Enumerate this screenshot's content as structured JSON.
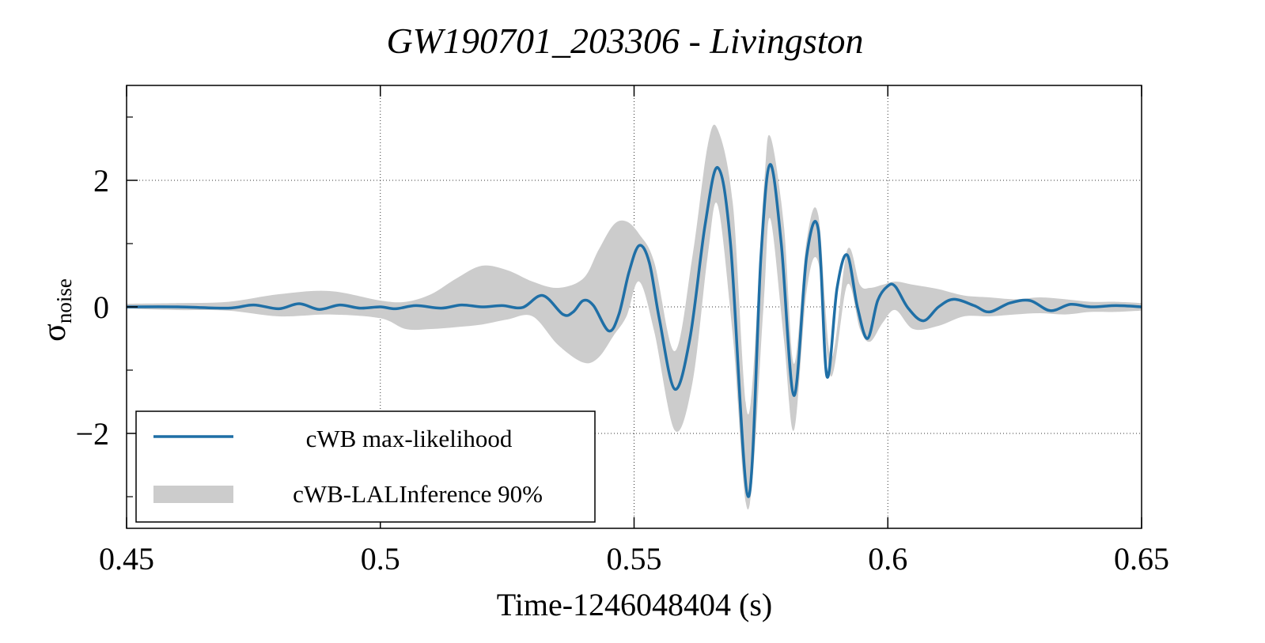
{
  "chart_data": {
    "type": "line",
    "title": "GW190701_203306 - Livingston",
    "xlabel": "Time-1246048404 (s)",
    "ylabel": "σ",
    "ylabel_subscript": "noise",
    "xlim": [
      0.45,
      0.65
    ],
    "ylim": [
      -3.5,
      3.5
    ],
    "x_ticks": [
      0.45,
      0.5,
      0.55,
      0.6,
      0.65
    ],
    "x_tick_labels": [
      "0.45",
      "0.5",
      "0.55",
      "0.6",
      "0.65"
    ],
    "y_ticks": [
      2,
      0,
      -2
    ],
    "y_tick_labels": [
      "2",
      "0",
      "−2"
    ],
    "y_minor_ticks": [
      3,
      1,
      -1,
      -3
    ],
    "grid": true,
    "legend_position": "bottom-left",
    "colors": {
      "line": "#1f6fa6",
      "band": "#cccccc"
    },
    "series": [
      {
        "name": "cWB max-likelihood",
        "kind": "line",
        "x": [
          0.45,
          0.46,
          0.47,
          0.475,
          0.48,
          0.484,
          0.488,
          0.492,
          0.496,
          0.5,
          0.503,
          0.507,
          0.512,
          0.516,
          0.52,
          0.524,
          0.528,
          0.532,
          0.536,
          0.538,
          0.54,
          0.542,
          0.545,
          0.547,
          0.549,
          0.551,
          0.553,
          0.555,
          0.558,
          0.561,
          0.564,
          0.5665,
          0.569,
          0.5725,
          0.575,
          0.5768,
          0.579,
          0.5815,
          0.584,
          0.5863,
          0.588,
          0.59,
          0.592,
          0.594,
          0.596,
          0.598,
          0.6,
          0.6015,
          0.604,
          0.607,
          0.61,
          0.613,
          0.617,
          0.62,
          0.624,
          0.628,
          0.632,
          0.636,
          0.64,
          0.645,
          0.65
        ],
        "y": [
          0.0,
          0.0,
          -0.02,
          0.03,
          -0.03,
          0.05,
          -0.04,
          0.03,
          -0.02,
          0.0,
          -0.03,
          0.02,
          -0.02,
          0.03,
          0.0,
          0.02,
          -0.01,
          0.18,
          -0.12,
          -0.08,
          0.1,
          0.02,
          -0.38,
          -0.12,
          0.55,
          0.97,
          0.7,
          -0.2,
          -1.3,
          -0.5,
          1.3,
          2.2,
          1.0,
          -3.0,
          0.8,
          2.25,
          1.0,
          -1.4,
          0.8,
          1.22,
          -1.1,
          0.3,
          0.82,
          0.0,
          -0.5,
          0.1,
          0.33,
          0.32,
          -0.02,
          -0.22,
          0.0,
          0.12,
          0.02,
          -0.08,
          0.06,
          0.1,
          -0.06,
          0.04,
          0.0,
          0.02,
          0.0
        ]
      },
      {
        "name": "cWB-LALInference 90%",
        "kind": "band",
        "x": [
          0.45,
          0.46,
          0.47,
          0.48,
          0.49,
          0.5,
          0.505,
          0.51,
          0.515,
          0.52,
          0.525,
          0.53,
          0.535,
          0.54,
          0.543,
          0.546,
          0.5485,
          0.551,
          0.554,
          0.558,
          0.5615,
          0.5645,
          0.5665,
          0.5695,
          0.5725,
          0.5755,
          0.5768,
          0.5795,
          0.5815,
          0.584,
          0.5863,
          0.5888,
          0.592,
          0.5945,
          0.5965,
          0.599,
          0.6015,
          0.605,
          0.61,
          0.615,
          0.62,
          0.625,
          0.63,
          0.635,
          0.64,
          0.645,
          0.65
        ],
        "upper": [
          0.05,
          0.06,
          0.08,
          0.2,
          0.25,
          0.1,
          0.08,
          0.2,
          0.45,
          0.65,
          0.58,
          0.4,
          0.3,
          0.45,
          0.9,
          1.3,
          1.35,
          1.15,
          0.7,
          -0.7,
          0.8,
          2.55,
          2.8,
          1.6,
          -1.7,
          1.8,
          2.7,
          1.3,
          -0.9,
          1.05,
          1.45,
          -0.8,
          0.9,
          0.35,
          0.3,
          0.35,
          0.4,
          0.35,
          0.28,
          0.18,
          0.15,
          0.12,
          0.15,
          0.12,
          0.08,
          0.08,
          0.06
        ],
        "lower": [
          -0.03,
          -0.05,
          -0.06,
          -0.15,
          -0.12,
          -0.18,
          -0.35,
          -0.35,
          -0.32,
          -0.28,
          -0.2,
          -0.15,
          -0.6,
          -0.88,
          -0.8,
          -0.45,
          -0.15,
          0.4,
          -0.4,
          -1.95,
          -1.2,
          0.8,
          1.6,
          -0.5,
          -3.2,
          0.0,
          1.4,
          -0.5,
          -1.95,
          0.25,
          0.7,
          -1.1,
          0.35,
          -0.35,
          -0.55,
          -0.25,
          -0.05,
          -0.35,
          -0.3,
          -0.15,
          -0.15,
          -0.12,
          -0.1,
          -0.12,
          -0.08,
          -0.08,
          -0.06
        ]
      }
    ]
  }
}
